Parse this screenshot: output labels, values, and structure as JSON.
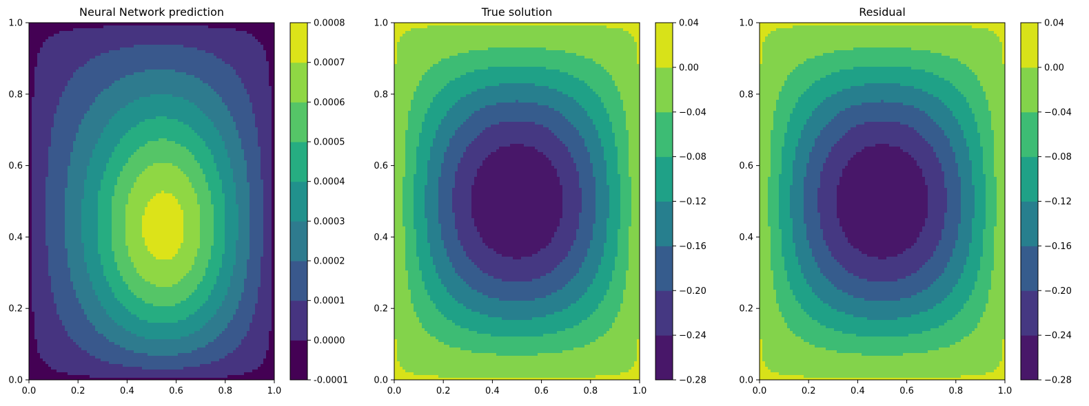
{
  "chart_data": [
    {
      "type": "contour",
      "title": "Neural Network prediction",
      "xlabel": "",
      "ylabel": "",
      "xlim": [
        0,
        1
      ],
      "ylim": [
        0,
        1
      ],
      "xticks": [
        "0.0",
        "0.2",
        "0.4",
        "0.6",
        "0.8",
        "1.0"
      ],
      "yticks": [
        "0.0",
        "0.2",
        "0.4",
        "0.6",
        "0.8",
        "1.0"
      ],
      "colorbar_levels": [
        "-0.0001",
        "0.0000",
        "0.0001",
        "0.0002",
        "0.0003",
        "0.0004",
        "0.0005",
        "0.0006",
        "0.0007",
        "0.0008"
      ],
      "colorbar_range": [
        -0.0001,
        0.0008
      ],
      "peak": {
        "x": 0.57,
        "y": 0.38,
        "value": 0.00075
      },
      "colormap": "viridis",
      "grid": false
    },
    {
      "type": "contour",
      "title": "True solution",
      "xlabel": "",
      "ylabel": "",
      "xlim": [
        0,
        1
      ],
      "ylim": [
        0,
        1
      ],
      "xticks": [
        "0.0",
        "0.2",
        "0.4",
        "0.6",
        "0.8",
        "1.0"
      ],
      "yticks": [
        "0.0",
        "0.2",
        "0.4",
        "0.6",
        "0.8",
        "1.0"
      ],
      "colorbar_levels": [
        "−0.28",
        "−0.24",
        "−0.20",
        "−0.16",
        "−0.12",
        "−0.08",
        "−0.04",
        "0.00",
        "0.04"
      ],
      "colorbar_range": [
        -0.28,
        0.04
      ],
      "minimum": {
        "x": 0.5,
        "y": 0.5,
        "value": -0.25
      },
      "colormap": "viridis",
      "grid": false
    },
    {
      "type": "contour",
      "title": "Residual",
      "xlabel": "",
      "ylabel": "",
      "xlim": [
        0,
        1
      ],
      "ylim": [
        0,
        1
      ],
      "xticks": [
        "0.0",
        "0.2",
        "0.4",
        "0.6",
        "0.8",
        "1.0"
      ],
      "yticks": [
        "0.0",
        "0.2",
        "0.4",
        "0.6",
        "0.8",
        "1.0"
      ],
      "colorbar_levels": [
        "−0.28",
        "−0.24",
        "−0.20",
        "−0.16",
        "−0.12",
        "−0.08",
        "−0.04",
        "0.00",
        "0.04"
      ],
      "colorbar_range": [
        -0.28,
        0.04
      ],
      "minimum": {
        "x": 0.5,
        "y": 0.5,
        "value": -0.25
      },
      "colormap": "viridis",
      "grid": false
    }
  ]
}
